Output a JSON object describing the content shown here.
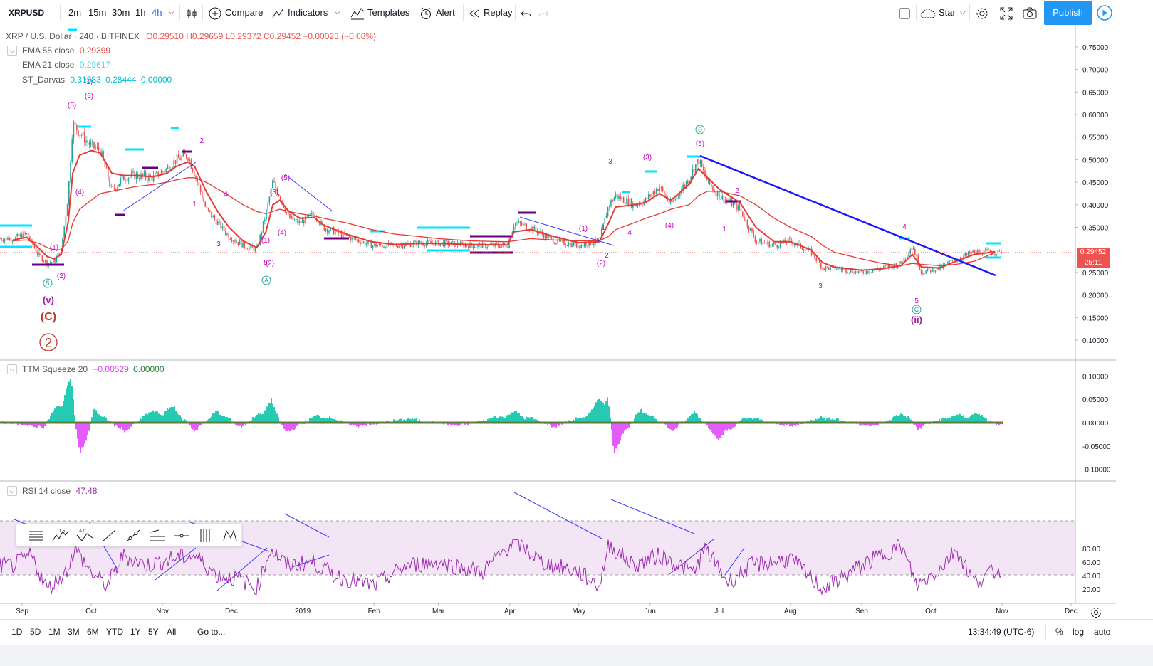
{
  "toolbar": {
    "symbol": "XRPUSD",
    "intervals": [
      "2m",
      "15m",
      "30m",
      "1h",
      "4h"
    ],
    "active_interval": "4h",
    "compare": "Compare",
    "indicators": "Indicators",
    "templates": "Templates",
    "alert": "Alert",
    "replay": "Replay",
    "star": "Star",
    "publish": "Publish"
  },
  "legend": {
    "title": "XRP / U.S. Dollar · 240 · BITFINEX",
    "ohlc": "O0.29510 H0.29659 L0.29372 C0.29452 −0.00023 (−0.08%)",
    "ema55_label": "EMA 55 close",
    "ema55_value": "0.29399",
    "ema21_label": "EMA 21 close",
    "ema21_value": "0.29617",
    "darvas_label": "ST_Darvas",
    "darvas_v1": "0.31583",
    "darvas_v2": "0.28444",
    "darvas_v3": "0.00000",
    "ttm_label": "TTM Squeeze 20",
    "ttm_v1": "−0.00529",
    "ttm_v2": "0.00000",
    "rsi_label": "RSI 14 close",
    "rsi_value": "47.48"
  },
  "price_badges": {
    "price": "0.29452",
    "countdown": "25:11"
  },
  "bottom": {
    "ranges": [
      "1D",
      "5D",
      "1M",
      "3M",
      "6M",
      "YTD",
      "1Y",
      "5Y",
      "All"
    ],
    "goto": "Go to...",
    "clock": "13:34:49 (UTC-6)",
    "percent": "%",
    "log": "log",
    "auto": "auto"
  },
  "colors": {
    "up": "#26a69a",
    "down": "#ef5350",
    "ema55": "#e53935",
    "ema21": "#4dd0e1",
    "trend": "#1a1aff",
    "darvas_top": "#00e5ff",
    "darvas_bottom": "#6a0080",
    "wave": "#c400c4",
    "wave_teal": "#26a69a",
    "rsi": "#9c27b0"
  },
  "chart_data": [
    {
      "type": "line",
      "title": "XRP / U.S. Dollar · 240 · BITFINEX",
      "xlabel": "",
      "ylabel": "",
      "x_tick_labels": [
        "Sep",
        "Oct",
        "Nov",
        "Dec",
        "2019",
        "Feb",
        "Mar",
        "Apr",
        "May",
        "Jun",
        "Jul",
        "Aug",
        "Sep",
        "Oct",
        "Nov",
        "Dec"
      ],
      "y_tick_labels": [
        "0.75000",
        "0.70000",
        "0.65000",
        "0.60000",
        "0.55000",
        "0.50000",
        "0.45000",
        "0.40000",
        "0.35000",
        "0.30000",
        "0.25000",
        "0.20000",
        "0.15000",
        "0.10000"
      ],
      "ylim": [
        0.058,
        0.79
      ],
      "x": [
        "2018-08-28",
        "2018-09-03",
        "2018-09-08",
        "2018-09-12",
        "2018-09-15",
        "2018-09-18",
        "2018-09-21",
        "2018-09-23",
        "2018-09-26",
        "2018-10-01",
        "2018-10-05",
        "2018-10-10",
        "2018-10-15",
        "2018-10-20",
        "2018-10-28",
        "2018-11-03",
        "2018-11-07",
        "2018-11-12",
        "2018-11-15",
        "2018-11-20",
        "2018-11-25",
        "2018-11-30",
        "2018-12-06",
        "2018-12-12",
        "2018-12-16",
        "2018-12-19",
        "2018-12-22",
        "2018-12-26",
        "2018-12-31",
        "2019-01-06",
        "2019-01-10",
        "2019-01-20",
        "2019-01-31",
        "2019-02-10",
        "2019-02-20",
        "2019-03-01",
        "2019-03-15",
        "2019-03-31",
        "2019-04-03",
        "2019-04-10",
        "2019-04-20",
        "2019-05-01",
        "2019-05-10",
        "2019-05-14",
        "2019-05-17",
        "2019-05-25",
        "2019-05-30",
        "2019-06-05",
        "2019-06-10",
        "2019-06-18",
        "2019-06-22",
        "2019-06-26",
        "2019-07-01",
        "2019-07-10",
        "2019-07-17",
        "2019-07-25",
        "2019-08-01",
        "2019-08-10",
        "2019-08-15",
        "2019-08-20",
        "2019-09-01",
        "2019-09-10",
        "2019-09-18",
        "2019-09-23",
        "2019-09-27",
        "2019-10-05",
        "2019-10-12",
        "2019-10-20",
        "2019-10-29"
      ],
      "series": [
        {
          "values": [
            0.325,
            0.335,
            0.29,
            0.27,
            0.275,
            0.3,
            0.42,
            0.58,
            0.56,
            0.53,
            0.52,
            0.43,
            0.46,
            0.465,
            0.46,
            0.48,
            0.5,
            0.51,
            0.47,
            0.39,
            0.36,
            0.33,
            0.31,
            0.3,
            0.38,
            0.45,
            0.42,
            0.37,
            0.36,
            0.38,
            0.35,
            0.33,
            0.31,
            0.31,
            0.315,
            0.315,
            0.31,
            0.31,
            0.36,
            0.35,
            0.32,
            0.31,
            0.32,
            0.4,
            0.42,
            0.4,
            0.41,
            0.44,
            0.4,
            0.46,
            0.5,
            0.45,
            0.42,
            0.39,
            0.32,
            0.31,
            0.32,
            0.295,
            0.26,
            0.26,
            0.25,
            0.26,
            0.27,
            0.31,
            0.25,
            0.26,
            0.28,
            0.295,
            0.295
          ]
        },
        {
          "name": "EMA 55 close",
          "values": [
            0.32,
            0.322,
            0.315,
            0.305,
            0.3,
            0.3,
            0.32,
            0.36,
            0.39,
            0.41,
            0.425,
            0.43,
            0.435,
            0.44,
            0.445,
            0.45,
            0.455,
            0.46,
            0.46,
            0.45,
            0.435,
            0.42,
            0.4,
            0.385,
            0.38,
            0.385,
            0.39,
            0.385,
            0.38,
            0.375,
            0.37,
            0.36,
            0.345,
            0.335,
            0.33,
            0.325,
            0.32,
            0.318,
            0.32,
            0.325,
            0.322,
            0.32,
            0.32,
            0.33,
            0.345,
            0.36,
            0.37,
            0.38,
            0.39,
            0.4,
            0.42,
            0.43,
            0.43,
            0.42,
            0.4,
            0.37,
            0.35,
            0.33,
            0.31,
            0.295,
            0.28,
            0.27,
            0.265,
            0.27,
            0.268,
            0.265,
            0.268,
            0.275,
            0.294
          ]
        },
        {
          "name": "EMA 21 close",
          "values": [
            0.322,
            0.328,
            0.305,
            0.285,
            0.28,
            0.29,
            0.36,
            0.47,
            0.51,
            0.52,
            0.515,
            0.47,
            0.465,
            0.465,
            0.462,
            0.47,
            0.485,
            0.495,
            0.485,
            0.43,
            0.385,
            0.35,
            0.32,
            0.305,
            0.34,
            0.4,
            0.41,
            0.385,
            0.37,
            0.372,
            0.355,
            0.335,
            0.318,
            0.312,
            0.314,
            0.314,
            0.312,
            0.311,
            0.34,
            0.345,
            0.33,
            0.316,
            0.318,
            0.36,
            0.395,
            0.4,
            0.405,
            0.425,
            0.41,
            0.445,
            0.48,
            0.46,
            0.435,
            0.405,
            0.35,
            0.318,
            0.318,
            0.3,
            0.272,
            0.262,
            0.255,
            0.258,
            0.265,
            0.29,
            0.262,
            0.26,
            0.275,
            0.29,
            0.296
          ]
        }
      ]
    },
    {
      "type": "bar",
      "title": "TTM Squeeze 20",
      "y_tick_labels": [
        "0.10000",
        "0.05000",
        "0.00000",
        "-0.05000",
        "-0.10000"
      ],
      "ylim": [
        -0.115,
        0.115
      ],
      "x": [
        "2018-08-28",
        "2018-09-10",
        "2018-09-22",
        "2018-09-26",
        "2018-10-02",
        "2018-10-15",
        "2018-10-24",
        "2018-11-06",
        "2018-11-15",
        "2018-11-25",
        "2018-12-05",
        "2018-12-18",
        "2018-12-24",
        "2019-01-08",
        "2019-01-25",
        "2019-02-15",
        "2019-03-10",
        "2019-04-03",
        "2019-04-20",
        "2019-05-05",
        "2019-05-13",
        "2019-05-16",
        "2019-05-28",
        "2019-06-10",
        "2019-06-20",
        "2019-07-01",
        "2019-07-12",
        "2019-08-01",
        "2019-08-15",
        "2019-09-05",
        "2019-09-20",
        "2019-09-25",
        "2019-10-08",
        "2019-10-22",
        "2019-10-29"
      ],
      "series": [
        {
          "values": [
            0.0,
            -0.015,
            0.1,
            -0.105,
            0.035,
            -0.025,
            0.02,
            0.035,
            -0.02,
            0.03,
            -0.015,
            0.05,
            -0.025,
            0.02,
            -0.01,
            0.01,
            -0.008,
            0.025,
            -0.01,
            0.02,
            0.08,
            -0.065,
            0.035,
            -0.02,
            0.025,
            -0.04,
            0.015,
            -0.01,
            0.015,
            -0.01,
            0.025,
            -0.015,
            0.015,
            0.02,
            -0.005
          ]
        }
      ]
    },
    {
      "type": "line",
      "title": "RSI 14 close",
      "y_tick_labels": [
        "80.00",
        "60.00",
        "40.00",
        "20.00"
      ],
      "ylim": [
        10,
        96
      ],
      "x": [
        "2018-08-28",
        "2018-09-05",
        "2018-09-12",
        "2018-09-20",
        "2018-09-24",
        "2018-10-01",
        "2018-10-08",
        "2018-10-15",
        "2018-10-25",
        "2018-11-05",
        "2018-11-15",
        "2018-11-25",
        "2018-12-05",
        "2018-12-12",
        "2018-12-18",
        "2018-12-25",
        "2019-01-05",
        "2019-01-15",
        "2019-02-01",
        "2019-02-15",
        "2019-03-01",
        "2019-03-20",
        "2019-04-03",
        "2019-04-15",
        "2019-05-01",
        "2019-05-10",
        "2019-05-14",
        "2019-05-25",
        "2019-06-05",
        "2019-06-20",
        "2019-06-25",
        "2019-07-05",
        "2019-07-15",
        "2019-08-01",
        "2019-08-15",
        "2019-09-01",
        "2019-09-18",
        "2019-09-25",
        "2019-10-05",
        "2019-10-12",
        "2019-10-20",
        "2019-10-29"
      ],
      "series": [
        {
          "values": [
            55,
            70,
            20,
            45,
            80,
            45,
            25,
            70,
            55,
            65,
            70,
            40,
            35,
            20,
            80,
            55,
            60,
            40,
            25,
            55,
            60,
            45,
            92,
            60,
            45,
            25,
            86,
            55,
            70,
            45,
            80,
            30,
            55,
            65,
            20,
            55,
            85,
            25,
            50,
            80,
            30,
            47
          ]
        }
      ]
    }
  ]
}
